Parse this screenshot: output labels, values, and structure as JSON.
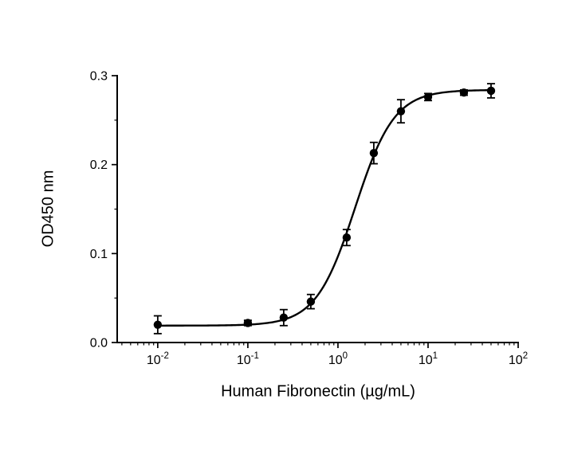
{
  "chart_data": {
    "type": "scatter",
    "title": "",
    "xlabel": "Human Fibronectin (µg/mL)",
    "ylabel": "OD450 nm",
    "x_scale": "log10",
    "xlim_log10": [
      -2.45,
      2
    ],
    "ylim": [
      0,
      0.3
    ],
    "grid": false,
    "legend": "none",
    "x_major_ticks": [
      {
        "value": 0.01,
        "log10": -2,
        "mantissa": "10",
        "exponent": "-2"
      },
      {
        "value": 0.1,
        "log10": -1,
        "mantissa": "10",
        "exponent": "-1"
      },
      {
        "value": 1,
        "log10": 0,
        "mantissa": "10",
        "exponent": "0"
      },
      {
        "value": 10,
        "log10": 1,
        "mantissa": "10",
        "exponent": "1"
      },
      {
        "value": 100,
        "log10": 2,
        "mantissa": "10",
        "exponent": "2"
      }
    ],
    "y_major_ticks": [
      {
        "value": 0,
        "label": "0.0"
      },
      {
        "value": 0.1,
        "label": "0.1"
      },
      {
        "value": 0.2,
        "label": "0.2"
      },
      {
        "value": 0.3,
        "label": "0.3"
      }
    ],
    "y_minor_step": 0.05,
    "points": [
      {
        "x": 0.01,
        "y": 0.02,
        "err": 0.01
      },
      {
        "x": 0.1,
        "y": 0.022,
        "err": 0.003
      },
      {
        "x": 0.25,
        "y": 0.028,
        "err": 0.009
      },
      {
        "x": 0.5,
        "y": 0.046,
        "err": 0.008
      },
      {
        "x": 1.25,
        "y": 0.118,
        "err": 0.009
      },
      {
        "x": 2.5,
        "y": 0.213,
        "err": 0.012
      },
      {
        "x": 5,
        "y": 0.26,
        "err": 0.013
      },
      {
        "x": 10,
        "y": 0.276,
        "err": 0.004
      },
      {
        "x": 25,
        "y": 0.281,
        "err": 0.003
      },
      {
        "x": 50,
        "y": 0.283,
        "err": 0.008
      }
    ],
    "fit": {
      "model": "4PL",
      "bottom": 0.019,
      "top": 0.284,
      "ec50": 1.55,
      "hill": 2.0
    },
    "style": {
      "axis_color": "#000000",
      "line_color": "#000000",
      "marker_color": "#000000",
      "background": "#ffffff",
      "marker_radius": 5.2
    }
  }
}
